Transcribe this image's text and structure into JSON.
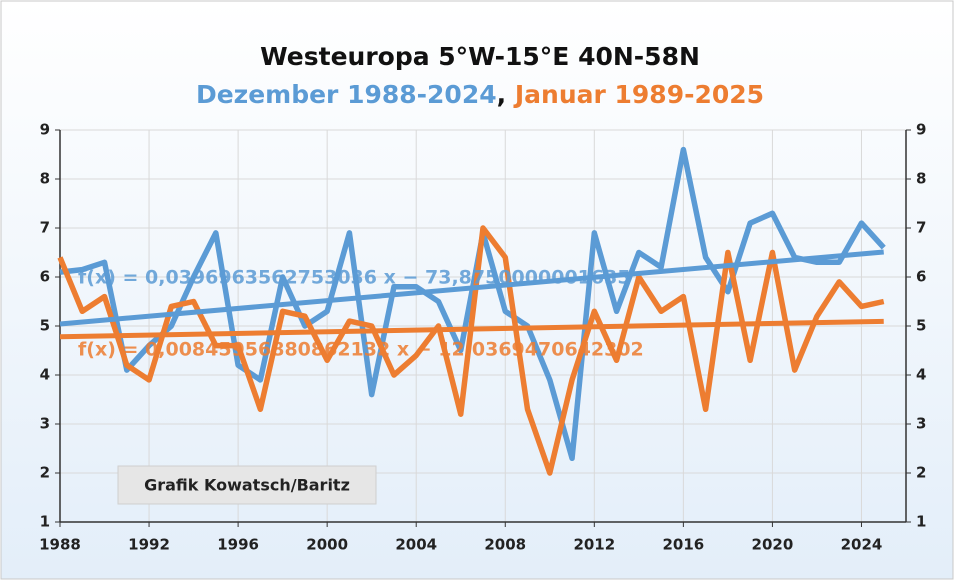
{
  "chart_data": {
    "type": "line",
    "title": "Westeuropa 5°W-15°E 40N-58N",
    "subtitle_separator": ",",
    "x": [
      1988,
      1989,
      1990,
      1991,
      1992,
      1993,
      1994,
      1995,
      1996,
      1997,
      1998,
      1999,
      2000,
      2001,
      2002,
      2003,
      2004,
      2005,
      2006,
      2007,
      2008,
      2009,
      2010,
      2011,
      2012,
      2013,
      2014,
      2015,
      2016,
      2017,
      2018,
      2019,
      2020,
      2021,
      2022,
      2023,
      2024,
      2025
    ],
    "series": [
      {
        "name": "Dezember 1988-2024",
        "color": "#5b9bd5",
        "values": [
          6.1,
          6.15,
          6.3,
          4.1,
          4.6,
          5.0,
          6.0,
          6.9,
          4.2,
          3.9,
          6.0,
          5.0,
          5.3,
          6.9,
          3.6,
          5.8,
          5.8,
          5.5,
          4.5,
          6.9,
          5.3,
          5.0,
          3.9,
          2.3,
          6.9,
          5.3,
          6.5,
          6.2,
          8.6,
          6.4,
          5.7,
          7.1,
          7.3,
          6.4,
          6.3,
          6.3,
          7.1,
          6.6
        ]
      },
      {
        "name": "Januar 1989-2025",
        "color": "#ed7d31",
        "values": [
          6.4,
          5.3,
          5.6,
          4.2,
          3.9,
          5.4,
          5.5,
          4.6,
          4.6,
          3.3,
          5.3,
          5.2,
          4.3,
          5.1,
          5.0,
          4.0,
          4.4,
          5.0,
          3.2,
          7.0,
          6.4,
          3.3,
          2.0,
          3.9,
          5.3,
          4.3,
          6.0,
          5.3,
          5.6,
          3.3,
          6.5,
          4.3,
          6.5,
          4.1,
          5.2,
          5.9,
          5.4,
          5.5
        ]
      }
    ],
    "trend_lines": [
      {
        "label": "f(x) = 0,0396963562753036 x − 73,8750000001635",
        "slope": 0.0396963562753036,
        "intercept": -73.8750000001635
      },
      {
        "label": "f(x) = 0,00845956880862132 x − 12,0369470642302",
        "slope": 0.00845956880862132,
        "intercept": -12.0369470642302
      }
    ],
    "annotation": "Grafik Kowatsch/Baritz",
    "xlim": [
      1988,
      2026
    ],
    "xticks": [
      1988,
      1992,
      1996,
      2000,
      2004,
      2008,
      2012,
      2016,
      2020,
      2024
    ],
    "ylim": [
      1,
      9
    ],
    "yticks": [
      1,
      2,
      3,
      4,
      5,
      6,
      7,
      8,
      9
    ],
    "y2lim": [
      1,
      9
    ],
    "y2ticks": [
      1,
      2,
      3,
      4,
      5,
      6,
      7,
      8,
      9
    ],
    "grid": true
  }
}
